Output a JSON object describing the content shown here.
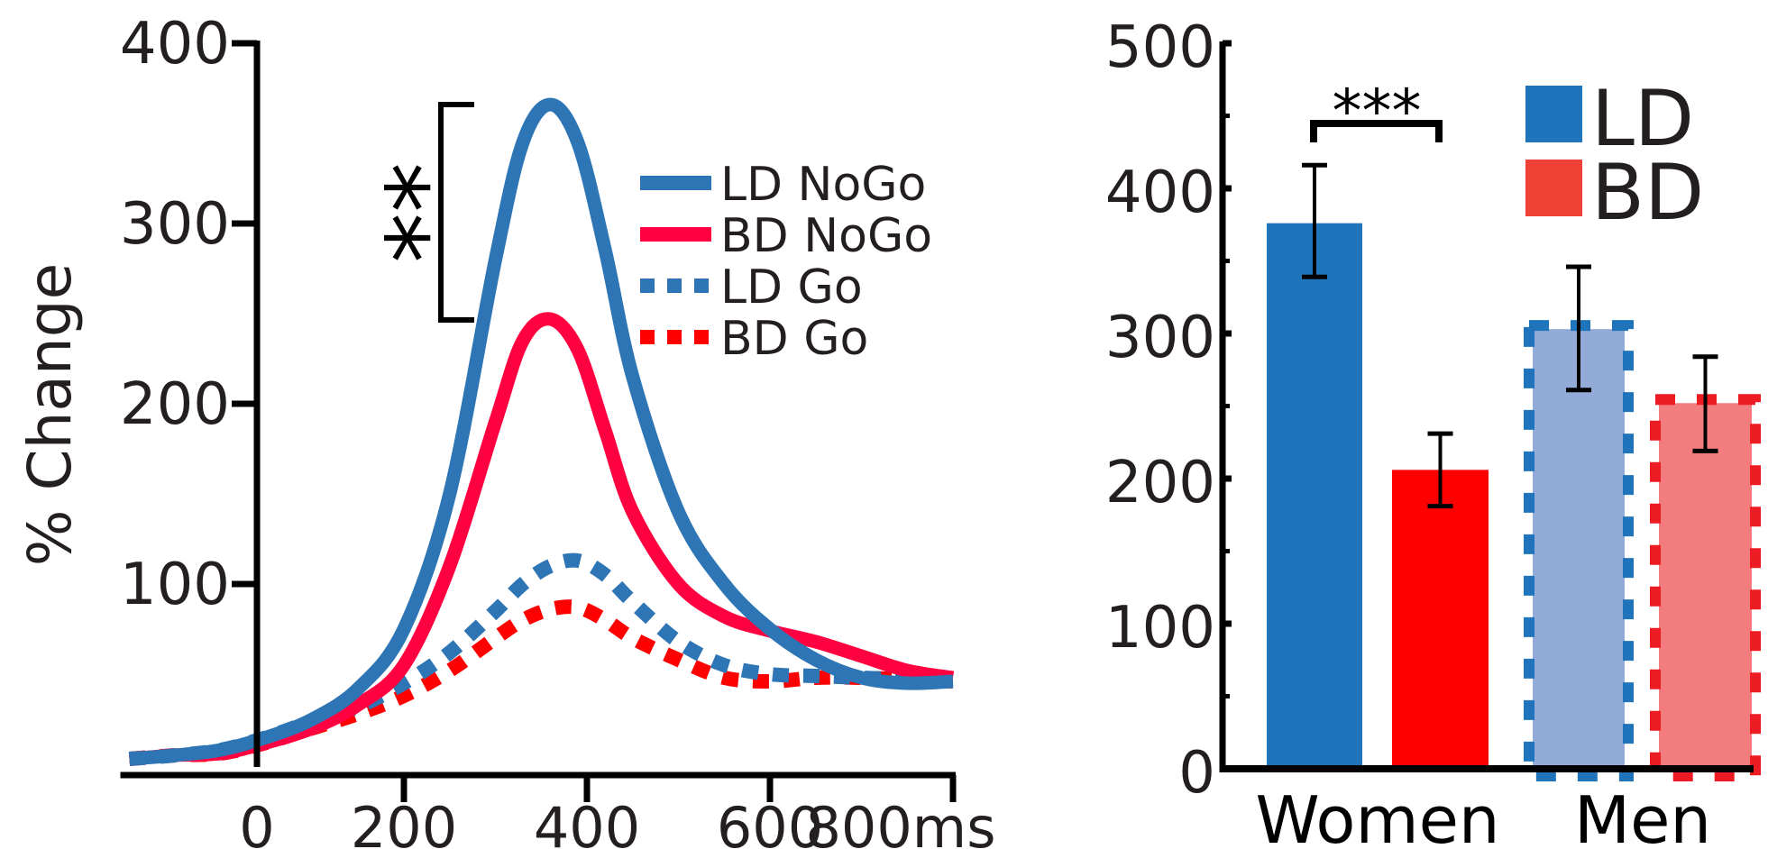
{
  "chart_data": [
    {
      "type": "line",
      "title": "",
      "xlabel": "ms",
      "ylabel": "% Change",
      "xlim": [
        -100,
        800
      ],
      "ylim": [
        0,
        400
      ],
      "x_ticks": [
        0,
        200,
        400,
        600,
        800
      ],
      "x_tick_labels": [
        "0",
        "200",
        "400",
        "600",
        "800ms"
      ],
      "y_ticks": [
        100,
        200,
        300,
        400
      ],
      "y_tick_labels": [
        "100",
        "200",
        "300",
        "400"
      ],
      "grid": false,
      "legend_position": "top-right",
      "annotation": {
        "text": "**",
        "between": [
          "LD NoGo",
          "BD NoGo"
        ],
        "at_x": 360
      },
      "x": [
        -100,
        -50,
        0,
        50,
        100,
        150,
        200,
        250,
        300,
        330,
        360,
        390,
        420,
        450,
        500,
        550,
        600,
        650,
        700,
        750,
        800
      ],
      "series": [
        {
          "name": "LD NoGo",
          "style": "solid",
          "color": "#2e75b6",
          "values": [
            3,
            5,
            8,
            15,
            25,
            42,
            75,
            150,
            280,
            345,
            366,
            345,
            285,
            215,
            140,
            100,
            75,
            58,
            48,
            45,
            46
          ]
        },
        {
          "name": "BD NoGo",
          "style": "solid",
          "color": "#ff0040",
          "values": [
            3,
            5,
            6,
            12,
            20,
            33,
            55,
            110,
            190,
            235,
            247,
            230,
            185,
            140,
            100,
            82,
            74,
            68,
            60,
            52,
            48
          ]
        },
        {
          "name": "LD Go",
          "style": "dotted",
          "color": "#2e75b6",
          "values": [
            3,
            5,
            8,
            15,
            24,
            32,
            45,
            62,
            85,
            100,
            110,
            113,
            105,
            90,
            68,
            55,
            50,
            49,
            48,
            47,
            46
          ]
        },
        {
          "name": "BD Go",
          "style": "dotted",
          "color": "#ff0000",
          "values": [
            3,
            5,
            6,
            12,
            20,
            28,
            38,
            52,
            70,
            80,
            86,
            87,
            80,
            70,
            58,
            48,
            46,
            48,
            48,
            47,
            46
          ]
        }
      ]
    },
    {
      "type": "bar",
      "title": "",
      "xlabel": "",
      "ylabel": "",
      "ylim": [
        0,
        500
      ],
      "y_ticks": [
        0,
        100,
        200,
        300,
        400,
        500
      ],
      "y_tick_labels": [
        "0",
        "100",
        "200",
        "300",
        "400",
        "500"
      ],
      "y_minor_ticks": [
        50,
        150,
        250,
        350,
        450
      ],
      "grid": false,
      "legend_position": "top-right",
      "categories": [
        "Women",
        "Men"
      ],
      "series": [
        {
          "name": "LD",
          "color": "#2074bb",
          "values": [
            376,
            303
          ],
          "error_low": [
            339,
            261
          ],
          "error_high": [
            416,
            346
          ]
        },
        {
          "name": "BD",
          "color": "#ef4136",
          "values": [
            206,
            252
          ],
          "error_low": [
            181,
            219
          ],
          "error_high": [
            231,
            284
          ]
        }
      ],
      "bar_styles": [
        {
          "category": "Women",
          "series": "LD",
          "fill": "#2074bb",
          "border": "none"
        },
        {
          "category": "Women",
          "series": "BD",
          "fill": "#ff0000",
          "border": "none"
        },
        {
          "category": "Men",
          "series": "LD",
          "fill": "#92abd8",
          "border": "dashed",
          "border_color": "#2074bb"
        },
        {
          "category": "Men",
          "series": "BD",
          "fill": "#f37d7e",
          "border": "dashed",
          "border_color": "#ed1c24"
        }
      ],
      "annotation": {
        "text": "***",
        "between": [
          "Women LD",
          "Women BD"
        ]
      }
    }
  ]
}
